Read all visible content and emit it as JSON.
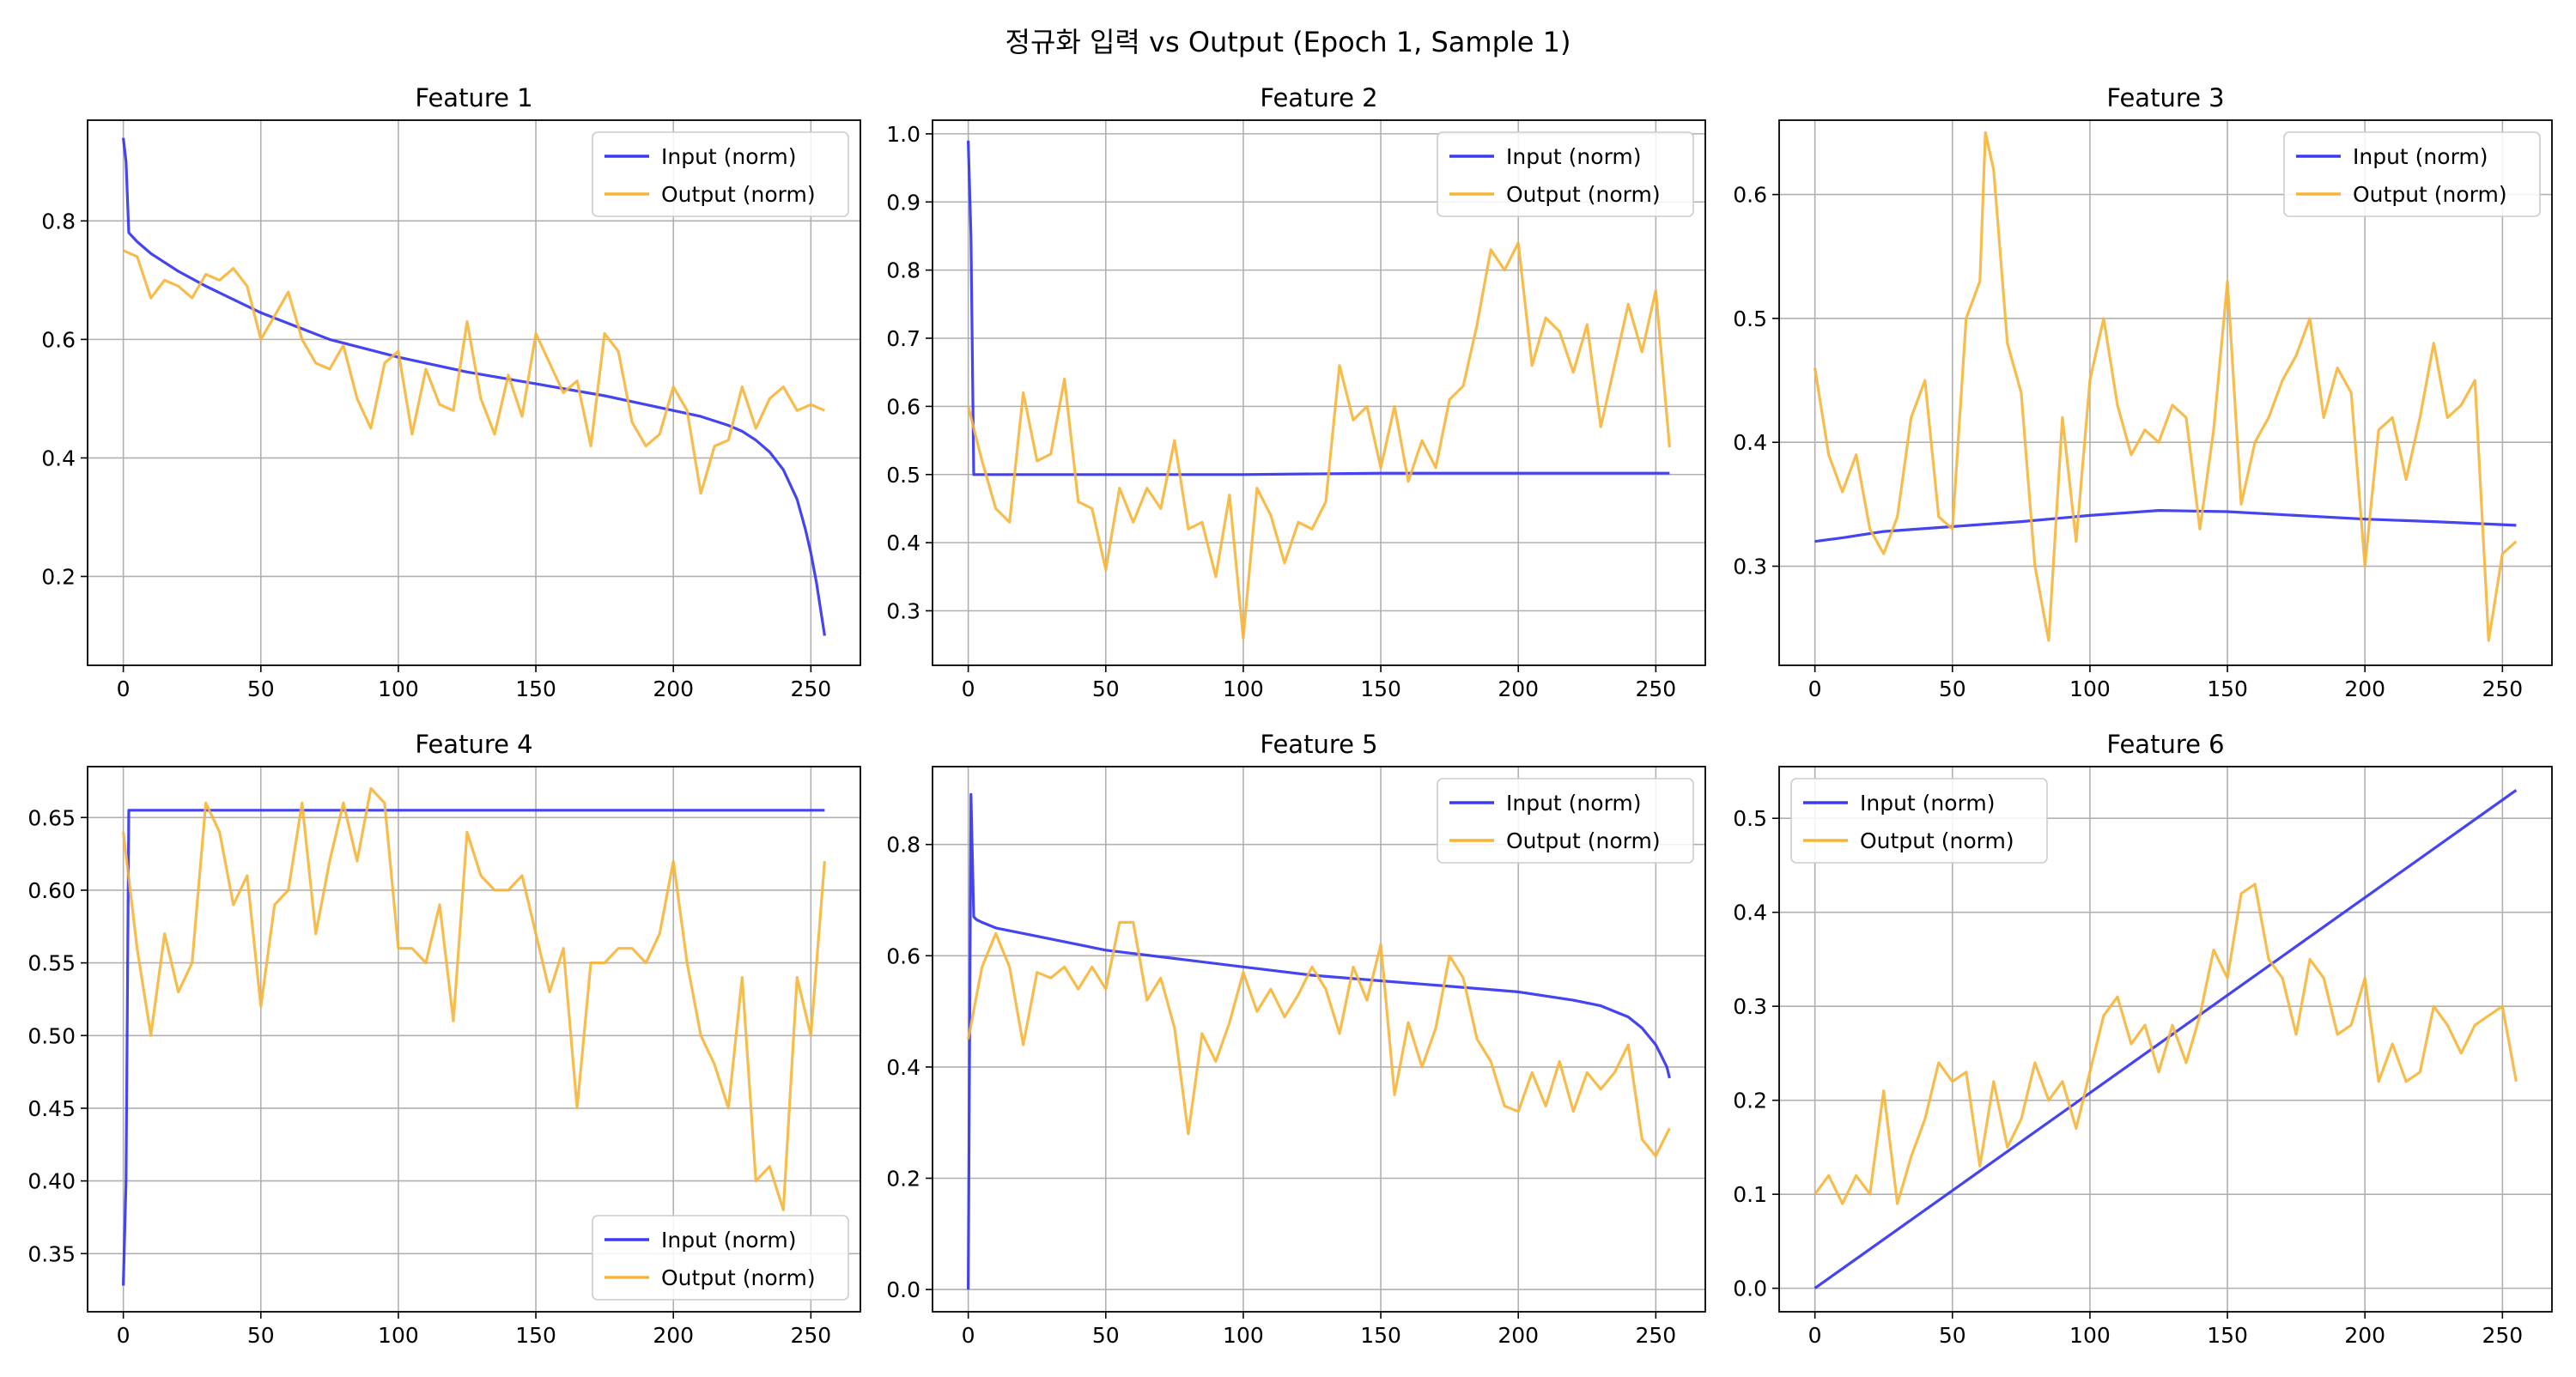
{
  "figure": {
    "title": "정규화 입력 vs Output (Epoch 1, Sample 1)"
  },
  "colors": {
    "input": "#3a3af0",
    "output": "#f7b538",
    "grid": "#b0b0b0",
    "axis": "#000000"
  },
  "chart_data": [
    {
      "type": "line",
      "title": "Feature 1",
      "xlim": [
        -13,
        268
      ],
      "ylim": [
        0.05,
        0.97
      ],
      "xticks": [
        0,
        50,
        100,
        150,
        200,
        250
      ],
      "yticks": [
        0.2,
        0.4,
        0.6,
        0.8
      ],
      "grid": true,
      "legend": "top-right",
      "series": [
        {
          "name": "Input (norm)",
          "color": "#3a3af0",
          "x": [
            0,
            1,
            2,
            3,
            5,
            10,
            20,
            30,
            50,
            75,
            100,
            125,
            150,
            175,
            200,
            210,
            220,
            225,
            230,
            235,
            240,
            245,
            248,
            250,
            252,
            253,
            254,
            255
          ],
          "y": [
            0.94,
            0.9,
            0.78,
            0.775,
            0.765,
            0.745,
            0.715,
            0.69,
            0.645,
            0.6,
            0.57,
            0.545,
            0.525,
            0.505,
            0.48,
            0.47,
            0.455,
            0.445,
            0.43,
            0.41,
            0.38,
            0.33,
            0.28,
            0.24,
            0.19,
            0.16,
            0.13,
            0.1
          ]
        },
        {
          "name": "Output (norm)",
          "color": "#f7b538",
          "x": [
            0,
            5,
            10,
            15,
            20,
            25,
            30,
            35,
            40,
            45,
            50,
            55,
            60,
            65,
            70,
            75,
            80,
            85,
            90,
            95,
            100,
            105,
            110,
            115,
            120,
            125,
            130,
            135,
            140,
            145,
            150,
            155,
            160,
            165,
            170,
            175,
            180,
            185,
            190,
            195,
            200,
            205,
            210,
            215,
            220,
            225,
            230,
            235,
            240,
            245,
            250,
            255
          ],
          "y": [
            0.75,
            0.74,
            0.67,
            0.7,
            0.69,
            0.67,
            0.71,
            0.7,
            0.72,
            0.69,
            0.6,
            0.64,
            0.68,
            0.6,
            0.56,
            0.55,
            0.59,
            0.5,
            0.45,
            0.56,
            0.58,
            0.44,
            0.55,
            0.49,
            0.48,
            0.63,
            0.5,
            0.44,
            0.54,
            0.47,
            0.61,
            0.56,
            0.51,
            0.53,
            0.42,
            0.61,
            0.58,
            0.46,
            0.42,
            0.44,
            0.52,
            0.48,
            0.34,
            0.42,
            0.43,
            0.52,
            0.45,
            0.5,
            0.52,
            0.48,
            0.49,
            0.48
          ]
        }
      ]
    },
    {
      "type": "line",
      "title": "Feature 2",
      "xlim": [
        -13,
        268
      ],
      "ylim": [
        0.22,
        1.02
      ],
      "xticks": [
        0,
        50,
        100,
        150,
        200,
        250
      ],
      "yticks": [
        0.3,
        0.4,
        0.5,
        0.6,
        0.7,
        0.8,
        0.9,
        1.0
      ],
      "grid": true,
      "legend": "top-right",
      "series": [
        {
          "name": "Input (norm)",
          "color": "#3a3af0",
          "x": [
            0,
            1,
            2,
            3,
            5,
            50,
            100,
            150,
            200,
            255
          ],
          "y": [
            0.99,
            0.85,
            0.5,
            0.5,
            0.5,
            0.5,
            0.5,
            0.502,
            0.502,
            0.502
          ]
        },
        {
          "name": "Output (norm)",
          "color": "#f7b538",
          "x": [
            0,
            5,
            10,
            15,
            20,
            25,
            30,
            35,
            40,
            45,
            50,
            55,
            60,
            65,
            70,
            75,
            80,
            85,
            90,
            95,
            100,
            105,
            110,
            115,
            120,
            125,
            130,
            135,
            140,
            145,
            150,
            155,
            160,
            165,
            170,
            175,
            180,
            185,
            190,
            195,
            200,
            205,
            210,
            215,
            220,
            225,
            230,
            235,
            240,
            245,
            250,
            255
          ],
          "y": [
            0.6,
            0.52,
            0.45,
            0.43,
            0.62,
            0.52,
            0.53,
            0.64,
            0.46,
            0.45,
            0.36,
            0.48,
            0.43,
            0.48,
            0.45,
            0.55,
            0.42,
            0.43,
            0.35,
            0.47,
            0.26,
            0.48,
            0.44,
            0.37,
            0.43,
            0.42,
            0.46,
            0.66,
            0.58,
            0.6,
            0.51,
            0.6,
            0.49,
            0.55,
            0.51,
            0.61,
            0.63,
            0.72,
            0.83,
            0.8,
            0.84,
            0.66,
            0.73,
            0.71,
            0.65,
            0.72,
            0.57,
            0.66,
            0.75,
            0.68,
            0.77,
            0.54
          ]
        }
      ]
    },
    {
      "type": "line",
      "title": "Feature 3",
      "xlim": [
        -13,
        268
      ],
      "ylim": [
        0.22,
        0.66
      ],
      "xticks": [
        0,
        50,
        100,
        150,
        200,
        250
      ],
      "yticks": [
        0.3,
        0.4,
        0.5,
        0.6
      ],
      "grid": true,
      "legend": "top-right",
      "series": [
        {
          "name": "Input (norm)",
          "color": "#3a3af0",
          "x": [
            0,
            10,
            25,
            50,
            75,
            100,
            125,
            150,
            175,
            200,
            225,
            255
          ],
          "y": [
            0.32,
            0.323,
            0.328,
            0.332,
            0.336,
            0.341,
            0.345,
            0.344,
            0.341,
            0.338,
            0.336,
            0.333
          ]
        },
        {
          "name": "Output (norm)",
          "color": "#f7b538",
          "x": [
            0,
            5,
            10,
            15,
            20,
            25,
            30,
            35,
            40,
            45,
            50,
            55,
            60,
            62,
            65,
            70,
            75,
            80,
            85,
            90,
            95,
            100,
            105,
            110,
            115,
            120,
            125,
            130,
            135,
            140,
            145,
            150,
            155,
            160,
            165,
            170,
            175,
            180,
            185,
            190,
            195,
            200,
            205,
            210,
            215,
            220,
            225,
            230,
            235,
            240,
            245,
            250,
            255
          ],
          "y": [
            0.46,
            0.39,
            0.36,
            0.39,
            0.33,
            0.31,
            0.34,
            0.42,
            0.45,
            0.34,
            0.33,
            0.5,
            0.53,
            0.65,
            0.62,
            0.48,
            0.44,
            0.3,
            0.24,
            0.42,
            0.32,
            0.45,
            0.5,
            0.43,
            0.39,
            0.41,
            0.4,
            0.43,
            0.42,
            0.33,
            0.41,
            0.53,
            0.35,
            0.4,
            0.42,
            0.45,
            0.47,
            0.5,
            0.42,
            0.46,
            0.44,
            0.3,
            0.41,
            0.42,
            0.37,
            0.42,
            0.48,
            0.42,
            0.43,
            0.45,
            0.24,
            0.31,
            0.32
          ]
        }
      ]
    },
    {
      "type": "line",
      "title": "Feature 4",
      "xlim": [
        -13,
        268
      ],
      "ylim": [
        0.31,
        0.685
      ],
      "xticks": [
        0,
        50,
        100,
        150,
        200,
        250
      ],
      "yticks": [
        0.35,
        0.4,
        0.45,
        0.5,
        0.55,
        0.6,
        0.65
      ],
      "grid": true,
      "legend": "bottom-right",
      "series": [
        {
          "name": "Input (norm)",
          "color": "#3a3af0",
          "x": [
            0,
            1,
            2,
            3,
            50,
            100,
            150,
            200,
            255
          ],
          "y": [
            0.328,
            0.4,
            0.655,
            0.655,
            0.655,
            0.655,
            0.655,
            0.655,
            0.655
          ]
        },
        {
          "name": "Output (norm)",
          "color": "#f7b538",
          "x": [
            0,
            5,
            10,
            15,
            20,
            25,
            30,
            35,
            40,
            45,
            50,
            55,
            60,
            65,
            70,
            75,
            80,
            85,
            90,
            95,
            100,
            105,
            110,
            115,
            120,
            125,
            130,
            135,
            140,
            145,
            150,
            155,
            160,
            165,
            170,
            175,
            180,
            185,
            190,
            195,
            200,
            205,
            210,
            215,
            220,
            225,
            230,
            235,
            240,
            245,
            250,
            255
          ],
          "y": [
            0.64,
            0.56,
            0.5,
            0.57,
            0.53,
            0.55,
            0.66,
            0.64,
            0.59,
            0.61,
            0.52,
            0.59,
            0.6,
            0.66,
            0.57,
            0.62,
            0.66,
            0.62,
            0.67,
            0.66,
            0.56,
            0.56,
            0.55,
            0.59,
            0.51,
            0.64,
            0.61,
            0.6,
            0.6,
            0.61,
            0.57,
            0.53,
            0.56,
            0.45,
            0.55,
            0.55,
            0.56,
            0.56,
            0.55,
            0.57,
            0.62,
            0.55,
            0.5,
            0.48,
            0.45,
            0.54,
            0.4,
            0.41,
            0.38,
            0.54,
            0.5,
            0.62
          ]
        }
      ]
    },
    {
      "type": "line",
      "title": "Feature 5",
      "xlim": [
        -13,
        268
      ],
      "ylim": [
        -0.04,
        0.94
      ],
      "xticks": [
        0,
        50,
        100,
        150,
        200,
        250
      ],
      "yticks": [
        0.0,
        0.2,
        0.4,
        0.6,
        0.8
      ],
      "grid": true,
      "legend": "top-right",
      "series": [
        {
          "name": "Input (norm)",
          "color": "#3a3af0",
          "x": [
            0,
            1,
            2,
            3,
            5,
            10,
            25,
            50,
            75,
            100,
            125,
            150,
            175,
            200,
            220,
            230,
            240,
            245,
            250,
            252,
            254,
            255
          ],
          "y": [
            0.0,
            0.89,
            0.67,
            0.665,
            0.66,
            0.65,
            0.635,
            0.61,
            0.595,
            0.58,
            0.565,
            0.555,
            0.545,
            0.535,
            0.52,
            0.51,
            0.49,
            0.47,
            0.44,
            0.42,
            0.4,
            0.38
          ]
        },
        {
          "name": "Output (norm)",
          "color": "#f7b538",
          "x": [
            0,
            5,
            10,
            15,
            20,
            25,
            30,
            35,
            40,
            45,
            50,
            55,
            60,
            65,
            70,
            75,
            80,
            85,
            90,
            95,
            100,
            105,
            110,
            115,
            120,
            125,
            130,
            135,
            140,
            145,
            150,
            155,
            160,
            165,
            170,
            175,
            180,
            185,
            190,
            195,
            200,
            205,
            210,
            215,
            220,
            225,
            230,
            235,
            240,
            245,
            250,
            255
          ],
          "y": [
            0.45,
            0.58,
            0.64,
            0.58,
            0.44,
            0.57,
            0.56,
            0.58,
            0.54,
            0.58,
            0.54,
            0.66,
            0.66,
            0.52,
            0.56,
            0.47,
            0.28,
            0.46,
            0.41,
            0.48,
            0.57,
            0.5,
            0.54,
            0.49,
            0.53,
            0.58,
            0.54,
            0.46,
            0.58,
            0.52,
            0.62,
            0.35,
            0.48,
            0.4,
            0.47,
            0.6,
            0.56,
            0.45,
            0.41,
            0.33,
            0.32,
            0.39,
            0.33,
            0.41,
            0.32,
            0.39,
            0.36,
            0.39,
            0.44,
            0.27,
            0.24,
            0.29
          ]
        }
      ]
    },
    {
      "type": "line",
      "title": "Feature 6",
      "xlim": [
        -13,
        268
      ],
      "ylim": [
        -0.025,
        0.555
      ],
      "xticks": [
        0,
        50,
        100,
        150,
        200,
        250
      ],
      "yticks": [
        0.0,
        0.1,
        0.2,
        0.3,
        0.4,
        0.5
      ],
      "grid": true,
      "legend": "top-left",
      "series": [
        {
          "name": "Input (norm)",
          "color": "#3a3af0",
          "x": [
            0,
            255
          ],
          "y": [
            0.0,
            0.53
          ]
        },
        {
          "name": "Output (norm)",
          "color": "#f7b538",
          "x": [
            0,
            5,
            10,
            15,
            20,
            25,
            30,
            35,
            40,
            45,
            50,
            55,
            60,
            65,
            70,
            75,
            80,
            85,
            90,
            95,
            100,
            105,
            110,
            115,
            120,
            125,
            130,
            135,
            140,
            145,
            150,
            155,
            160,
            165,
            170,
            175,
            180,
            185,
            190,
            195,
            200,
            205,
            210,
            215,
            220,
            225,
            230,
            235,
            240,
            245,
            250,
            255
          ],
          "y": [
            0.1,
            0.12,
            0.09,
            0.12,
            0.1,
            0.21,
            0.09,
            0.14,
            0.18,
            0.24,
            0.22,
            0.23,
            0.13,
            0.22,
            0.15,
            0.18,
            0.24,
            0.2,
            0.22,
            0.17,
            0.23,
            0.29,
            0.31,
            0.26,
            0.28,
            0.23,
            0.28,
            0.24,
            0.29,
            0.36,
            0.33,
            0.42,
            0.43,
            0.35,
            0.33,
            0.27,
            0.35,
            0.33,
            0.27,
            0.28,
            0.33,
            0.22,
            0.26,
            0.22,
            0.23,
            0.3,
            0.28,
            0.25,
            0.28,
            0.29,
            0.3,
            0.22
          ]
        }
      ]
    }
  ]
}
